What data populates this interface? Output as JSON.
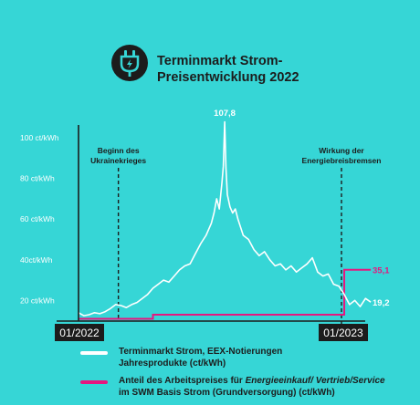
{
  "header": {
    "title_line1": "Terminmarkt Strom-",
    "title_line2": "Preisentwicklung 2022",
    "icon": "electric-plug-icon"
  },
  "colors": {
    "background": "#36d6d6",
    "white_series": "#ffffff",
    "pink_series": "#e6177f",
    "axis": "#1c1c1c"
  },
  "chart_data": {
    "type": "line",
    "xlabel": "",
    "ylabel": "",
    "x_start_label": "01/2022",
    "x_end_label": "01/2023",
    "ylim": [
      10,
      110
    ],
    "y_ticks": [
      {
        "value": 20,
        "label": "20 ct/kWh"
      },
      {
        "value": 40,
        "label": "40ct/kWh"
      },
      {
        "value": 60,
        "label": "60 ct/kWh"
      },
      {
        "value": 80,
        "label": "80 ct/kWh"
      },
      {
        "value": 100,
        "label": "100 ct/kWh"
      }
    ],
    "annotations": [
      {
        "label_line1": "Beginn des",
        "label_line2": "Ukrainekrieges",
        "x": 0.15
      },
      {
        "label_line1": "Wirkung der",
        "label_line2": "Energiebreisbremsen",
        "x": 1.0
      }
    ],
    "peak_label": "107,8",
    "white_end_label": "19,2",
    "pink_end_label": "35,1",
    "series": [
      {
        "name": "Terminmarkt Strom, EEX-Notierungen Jahresprodukte (ct/kWh)",
        "x": [
          0,
          0.02,
          0.04,
          0.06,
          0.08,
          0.1,
          0.12,
          0.14,
          0.16,
          0.18,
          0.2,
          0.22,
          0.24,
          0.26,
          0.28,
          0.3,
          0.32,
          0.34,
          0.36,
          0.38,
          0.4,
          0.42,
          0.44,
          0.46,
          0.48,
          0.5,
          0.51,
          0.52,
          0.53,
          0.54,
          0.545,
          0.55,
          0.555,
          0.56,
          0.57,
          0.58,
          0.59,
          0.6,
          0.62,
          0.64,
          0.66,
          0.68,
          0.7,
          0.72,
          0.74,
          0.76,
          0.78,
          0.8,
          0.82,
          0.84,
          0.86,
          0.88,
          0.9,
          0.92,
          0.94,
          0.96,
          0.98,
          1.0,
          1.02,
          1.04,
          1.06,
          1.08,
          1.1
        ],
        "y": [
          14,
          12.5,
          13,
          14,
          13.5,
          14.5,
          16,
          18,
          17.5,
          16.5,
          18,
          19,
          21,
          23,
          26,
          28,
          30,
          29,
          32,
          35,
          37,
          38,
          43,
          48,
          52,
          58,
          63,
          70,
          65,
          78,
          86,
          107.8,
          85,
          72,
          66,
          63,
          65,
          60,
          52,
          50,
          45,
          42,
          44,
          40,
          37,
          38,
          35,
          37,
          34,
          36,
          38,
          41,
          34,
          32,
          33,
          28,
          27,
          23,
          18,
          20,
          17,
          21,
          19.2
        ]
      },
      {
        "name": "Anteil des Arbeitspreises für Energieeinkauf/ Vertrieb/Service im SWM Basis Strom (Grundversorgung) (ct/kWh)",
        "x": [
          0,
          0.28,
          0.28,
          1.0,
          1.0,
          1.1
        ],
        "y": [
          11,
          11,
          13,
          13,
          35.1,
          35.1
        ]
      }
    ]
  },
  "legend": {
    "white_line1": "Terminmarkt Strom, EEX-Notierungen",
    "white_line2": "Jahresprodukte (ct/kWh)",
    "pink_line1_prefix": "Anteil des Arbeitspreises für ",
    "pink_line1_italic": "Energieeinkauf/ Vertrieb/Service",
    "pink_line2": "im SWM Basis Strom (Grundversorgung) (ct/kWh)"
  }
}
